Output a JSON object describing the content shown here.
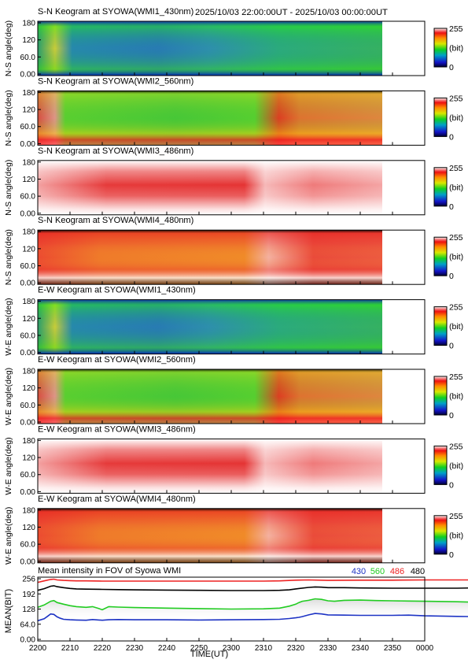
{
  "header": {
    "range_text": "2025/10/03 22:00:00UT - 2025/10/03 00:00:00UT"
  },
  "keograms": [
    {
      "title": "S-N Keogram at SYOWA(WMI1_430nm)",
      "ylabel": "N-S angle(deg)",
      "palette": "blue"
    },
    {
      "title": "S-N Keogram at SYOWA(WMI2_560nm)",
      "ylabel": "N-S angle(deg)",
      "palette": "green"
    },
    {
      "title": "S-N Keogram at SYOWA(WMI3_486nm)",
      "ylabel": "N-S angle(deg)",
      "palette": "pink"
    },
    {
      "title": "S-N Keogram at SYOWA(WMI4_480nm)",
      "ylabel": "N-S angle(deg)",
      "palette": "orange"
    },
    {
      "title": "E-W Keogram at SYOWA(WMI1_430nm)",
      "ylabel": "W-E angle(deg)",
      "palette": "blue"
    },
    {
      "title": "E-W Keogram at SYOWA(WMI2_560nm)",
      "ylabel": "W-E angle(deg)",
      "palette": "green"
    },
    {
      "title": "E-W Keogram at SYOWA(WMI3_486nm)",
      "ylabel": "W-E angle(deg)",
      "palette": "pink"
    },
    {
      "title": "E-W Keogram at SYOWA(WMI4_480nm)",
      "ylabel": "W-E angle(deg)",
      "palette": "orange"
    }
  ],
  "y_ticks": [
    "0.00",
    "60.0",
    "120",
    "180"
  ],
  "colorbar": {
    "max_label": "255",
    "unit_label": "(bit)",
    "min_label": "0"
  },
  "x_ticks": [
    "2200",
    "2210",
    "2220",
    "2230",
    "2240",
    "2250",
    "2300",
    "2310",
    "2320",
    "2330",
    "2340",
    "2350",
    "0000"
  ],
  "xlabel": "TIME(UT)",
  "chart_data": {
    "type": "line",
    "title": "Mean intensity in FOV of Syowa WMI",
    "xlabel": "TIME(UT)",
    "ylabel": "MEAN(BIT)",
    "ylim": [
      0,
      256
    ],
    "y_ticks": [
      "0.00",
      "64.0",
      "128",
      "192",
      "256"
    ],
    "x_range_minutes": [
      0,
      120
    ],
    "legend_position": "top-right",
    "series": [
      {
        "name": "430",
        "color": "#1d33c4",
        "x": [
          0,
          2,
          3,
          4,
          5,
          6,
          7,
          8,
          10,
          12,
          15,
          17,
          19,
          20,
          22,
          25,
          30,
          40,
          50,
          60,
          70,
          75,
          78,
          80,
          81,
          82,
          84,
          86,
          88,
          90,
          95,
          100,
          105,
          110,
          115,
          120,
          130,
          140,
          146.5
        ],
        "y": [
          80,
          88,
          98,
          108,
          106,
          96,
          90,
          86,
          84,
          83,
          82,
          85,
          83,
          82,
          84,
          85,
          84,
          84,
          83,
          84,
          85,
          86,
          89,
          92,
          94,
          97,
          104,
          110,
          108,
          104,
          103,
          102,
          102,
          102,
          103,
          100,
          98,
          96,
          96
        ]
      },
      {
        "name": "560",
        "color": "#22cc22",
        "x": [
          0,
          2,
          4,
          5,
          6,
          8,
          10,
          12,
          15,
          17,
          19,
          20,
          22,
          25,
          30,
          40,
          50,
          60,
          70,
          75,
          78,
          80,
          81,
          82,
          84,
          86,
          88,
          90,
          92,
          95,
          100,
          105,
          110,
          115,
          120,
          130,
          140,
          146.5
        ],
        "y": [
          135,
          145,
          160,
          163,
          155,
          148,
          142,
          138,
          135,
          138,
          130,
          125,
          138,
          136,
          134,
          132,
          130,
          128,
          129,
          132,
          140,
          148,
          155,
          160,
          164,
          170,
          168,
          162,
          160,
          164,
          165,
          163,
          162,
          161,
          160,
          158,
          155,
          153
        ]
      },
      {
        "name": "486",
        "color": "#ee2222",
        "x": [
          0,
          2,
          4,
          5,
          6,
          8,
          10,
          12,
          15,
          20,
          25,
          30,
          40,
          50,
          60,
          70,
          75,
          80,
          84,
          90,
          100,
          110,
          120,
          130,
          140,
          146.5
        ],
        "y": [
          238,
          244,
          250,
          251,
          248,
          246,
          245,
          244,
          244,
          243,
          243,
          243,
          243,
          243,
          243,
          243,
          244,
          247,
          248,
          246,
          247,
          247,
          248,
          248,
          248,
          248
        ]
      },
      {
        "name": "480",
        "color": "#000000",
        "x": [
          0,
          2,
          4,
          5,
          6,
          8,
          10,
          12,
          15,
          20,
          25,
          30,
          40,
          50,
          60,
          70,
          75,
          78,
          80,
          84,
          86,
          88,
          90,
          95,
          100,
          110,
          120,
          130,
          140,
          146.5
        ],
        "y": [
          205,
          212,
          222,
          224,
          220,
          216,
          213,
          211,
          210,
          209,
          208,
          207,
          206,
          205,
          204,
          204,
          205,
          207,
          211,
          217,
          219,
          218,
          216,
          216,
          215,
          214,
          214,
          214,
          216,
          217
        ]
      }
    ]
  }
}
